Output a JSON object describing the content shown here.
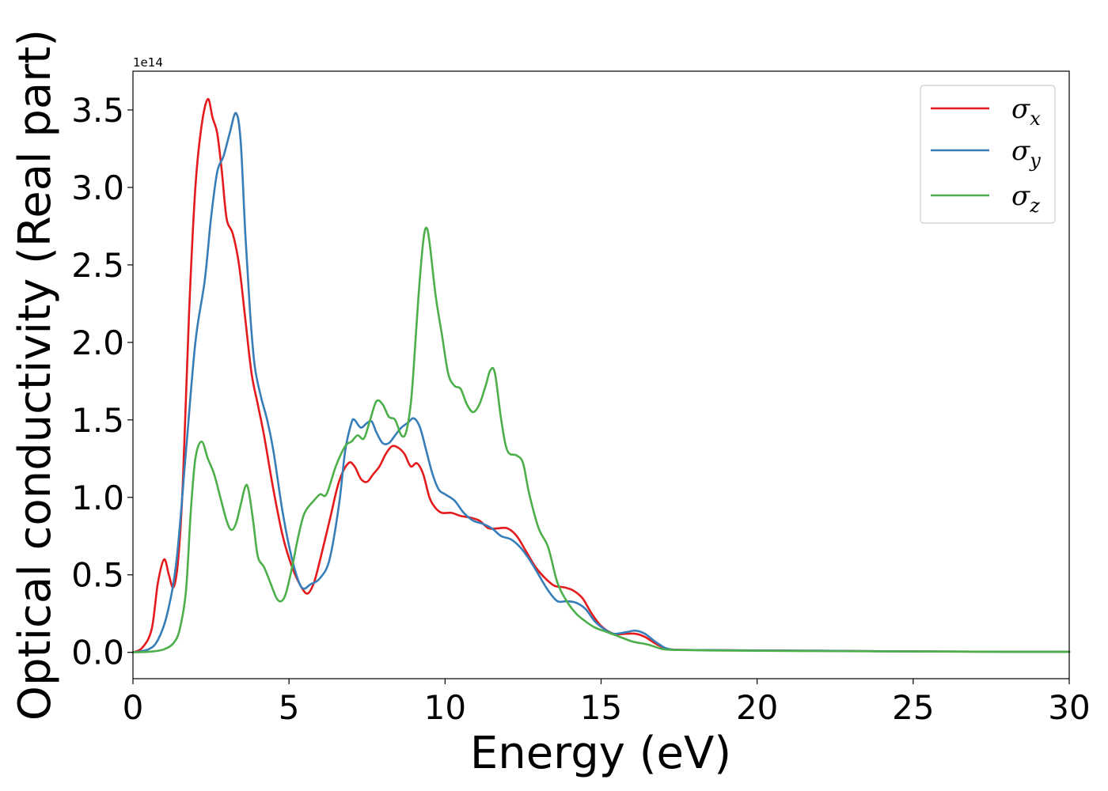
{
  "chart_data": {
    "type": "line",
    "title": "",
    "xlabel": "Energy (eV)",
    "ylabel": "Optical conductivity (Real part)",
    "y_offset_label": "1e14",
    "xlim": [
      0,
      30
    ],
    "ylim": [
      -0.17,
      3.75
    ],
    "x_ticks": [
      0,
      5,
      10,
      15,
      20,
      25,
      30
    ],
    "x_tick_labels": [
      "0",
      "5",
      "10",
      "15",
      "20",
      "25",
      "30"
    ],
    "y_ticks": [
      0.0,
      0.5,
      1.0,
      1.5,
      2.0,
      2.5,
      3.0,
      3.5
    ],
    "y_tick_labels": [
      "0.0",
      "0.5",
      "1.0",
      "1.5",
      "2.0",
      "2.5",
      "3.0",
      "3.5"
    ],
    "grid": false,
    "legend_position": "upper right",
    "series": [
      {
        "name": "σx",
        "legend_symbol": "σ",
        "legend_subscript": "x",
        "color": "#e41a1c",
        "x": [
          0.0,
          0.3,
          0.6,
          0.8,
          1.0,
          1.15,
          1.3,
          1.45,
          1.6,
          1.8,
          2.0,
          2.2,
          2.4,
          2.55,
          2.7,
          2.85,
          3.0,
          3.2,
          3.4,
          3.6,
          3.8,
          4.0,
          4.2,
          4.5,
          4.8,
          5.1,
          5.4,
          5.6,
          5.8,
          6.0,
          6.3,
          6.6,
          6.9,
          7.1,
          7.3,
          7.5,
          7.7,
          7.9,
          8.1,
          8.3,
          8.5,
          8.7,
          8.9,
          9.1,
          9.3,
          9.5,
          9.7,
          9.9,
          10.2,
          10.5,
          10.8,
          11.1,
          11.4,
          11.7,
          12.0,
          12.3,
          12.6,
          12.9,
          13.2,
          13.5,
          13.8,
          14.1,
          14.4,
          14.7,
          15.0,
          15.4,
          15.8,
          16.1,
          16.4,
          16.8,
          17.2,
          18.0,
          20.0,
          22.0,
          25.0,
          28.0,
          30.0
        ],
        "y": [
          0.0,
          0.03,
          0.15,
          0.45,
          0.6,
          0.5,
          0.42,
          0.6,
          1.1,
          2.2,
          3.0,
          3.4,
          3.57,
          3.45,
          3.35,
          3.1,
          2.8,
          2.7,
          2.5,
          2.15,
          1.8,
          1.6,
          1.4,
          1.05,
          0.75,
          0.55,
          0.42,
          0.38,
          0.45,
          0.6,
          0.85,
          1.1,
          1.22,
          1.2,
          1.12,
          1.1,
          1.15,
          1.2,
          1.28,
          1.33,
          1.32,
          1.28,
          1.2,
          1.22,
          1.15,
          1.0,
          0.93,
          0.9,
          0.9,
          0.88,
          0.87,
          0.85,
          0.8,
          0.8,
          0.8,
          0.75,
          0.65,
          0.55,
          0.48,
          0.43,
          0.42,
          0.4,
          0.35,
          0.25,
          0.17,
          0.12,
          0.12,
          0.12,
          0.1,
          0.05,
          0.02,
          0.015,
          0.012,
          0.01,
          0.006,
          0.004,
          0.003
        ]
      },
      {
        "name": "σy",
        "legend_symbol": "σ",
        "legend_subscript": "y",
        "color": "#377eb8",
        "x": [
          0.0,
          0.5,
          0.8,
          1.1,
          1.4,
          1.7,
          2.0,
          2.3,
          2.5,
          2.7,
          2.9,
          3.1,
          3.3,
          3.45,
          3.6,
          3.75,
          3.9,
          4.1,
          4.3,
          4.5,
          4.8,
          5.1,
          5.4,
          5.7,
          6.0,
          6.3,
          6.6,
          6.8,
          7.0,
          7.1,
          7.3,
          7.5,
          7.65,
          7.8,
          8.0,
          8.2,
          8.4,
          8.6,
          8.8,
          9.0,
          9.2,
          9.4,
          9.6,
          9.8,
          10.0,
          10.3,
          10.6,
          10.9,
          11.2,
          11.5,
          11.8,
          12.1,
          12.4,
          12.7,
          13.0,
          13.3,
          13.6,
          13.9,
          14.2,
          14.5,
          14.8,
          15.1,
          15.4,
          15.8,
          16.1,
          16.4,
          16.8,
          17.2,
          18.0,
          20.0,
          22.0,
          25.0,
          28.0,
          30.0
        ],
        "y": [
          0.0,
          0.02,
          0.08,
          0.25,
          0.6,
          1.3,
          2.0,
          2.4,
          2.8,
          3.1,
          3.2,
          3.35,
          3.48,
          3.3,
          2.7,
          2.2,
          1.85,
          1.65,
          1.5,
          1.3,
          0.9,
          0.6,
          0.42,
          0.44,
          0.48,
          0.6,
          0.95,
          1.3,
          1.48,
          1.5,
          1.45,
          1.48,
          1.49,
          1.42,
          1.35,
          1.35,
          1.4,
          1.45,
          1.48,
          1.51,
          1.45,
          1.3,
          1.15,
          1.05,
          1.02,
          0.98,
          0.9,
          0.85,
          0.83,
          0.8,
          0.75,
          0.73,
          0.68,
          0.6,
          0.5,
          0.4,
          0.33,
          0.33,
          0.32,
          0.28,
          0.2,
          0.15,
          0.12,
          0.13,
          0.14,
          0.12,
          0.06,
          0.02,
          0.015,
          0.012,
          0.01,
          0.006,
          0.004,
          0.003
        ]
      },
      {
        "name": "σz",
        "legend_symbol": "σ",
        "legend_subscript": "z",
        "color": "#4daf4a",
        "x": [
          0.0,
          0.6,
          1.0,
          1.3,
          1.5,
          1.7,
          1.85,
          2.0,
          2.2,
          2.4,
          2.6,
          2.8,
          3.0,
          3.15,
          3.3,
          3.45,
          3.6,
          3.7,
          3.85,
          4.0,
          4.2,
          4.4,
          4.6,
          4.75,
          4.9,
          5.1,
          5.3,
          5.5,
          5.8,
          6.0,
          6.2,
          6.5,
          6.8,
          7.0,
          7.2,
          7.4,
          7.6,
          7.8,
          8.0,
          8.2,
          8.4,
          8.6,
          8.75,
          8.9,
          9.0,
          9.15,
          9.3,
          9.4,
          9.5,
          9.7,
          9.9,
          10.1,
          10.3,
          10.5,
          10.7,
          10.9,
          11.1,
          11.3,
          11.45,
          11.6,
          11.8,
          12.0,
          12.3,
          12.5,
          12.7,
          13.0,
          13.3,
          13.6,
          13.9,
          14.2,
          14.5,
          14.8,
          15.2,
          15.6,
          16.0,
          16.5,
          17.0,
          17.5,
          18.5,
          20.0,
          22.0,
          25.0,
          28.0,
          30.0
        ],
        "y": [
          0.0,
          0.005,
          0.02,
          0.06,
          0.15,
          0.4,
          0.9,
          1.25,
          1.36,
          1.25,
          1.15,
          1.0,
          0.85,
          0.79,
          0.83,
          0.95,
          1.07,
          1.05,
          0.85,
          0.62,
          0.55,
          0.45,
          0.35,
          0.33,
          0.38,
          0.55,
          0.75,
          0.9,
          0.98,
          1.02,
          1.02,
          1.2,
          1.33,
          1.36,
          1.4,
          1.38,
          1.5,
          1.62,
          1.6,
          1.52,
          1.5,
          1.4,
          1.42,
          1.6,
          1.85,
          2.3,
          2.65,
          2.74,
          2.65,
          2.3,
          2.05,
          1.8,
          1.72,
          1.7,
          1.6,
          1.55,
          1.6,
          1.72,
          1.82,
          1.8,
          1.5,
          1.3,
          1.27,
          1.22,
          1.02,
          0.8,
          0.68,
          0.45,
          0.33,
          0.25,
          0.2,
          0.16,
          0.13,
          0.1,
          0.07,
          0.05,
          0.02,
          0.015,
          0.012,
          0.01,
          0.008,
          0.006,
          0.004,
          0.003
        ]
      }
    ]
  }
}
